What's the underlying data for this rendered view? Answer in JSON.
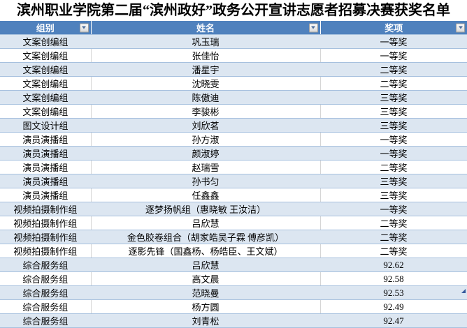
{
  "title": "滨州职业学院第二届“滨州政好”政务公开宣讲志愿者招募决赛获奖名单",
  "colors": {
    "header_bg": "#4F81BD",
    "header_text": "#FFFFFF",
    "band_row_bg": "#DCE6F1",
    "row_border": "#A6C0DE",
    "gridline": "#D6D6D6",
    "title_text": "#000000",
    "resize_handle": "#34579B"
  },
  "header": {
    "columns": [
      {
        "label": "组别",
        "filter_icon": "filter-dropdown-arrow-icon"
      },
      {
        "label": "姓名",
        "filter_icon": "filter-dropdown-arrow-icon"
      },
      {
        "label": "奖项",
        "filter_icon": "filter-dropdown-arrow-icon"
      }
    ]
  },
  "rows": [
    [
      "文案创编组",
      "巩玉瑞",
      "一等奖"
    ],
    [
      "文案创编组",
      "张佳怡",
      "一等奖"
    ],
    [
      "文案创编组",
      "潘星宇",
      "二等奖"
    ],
    [
      "文案创编组",
      "沈晓雯",
      "二等奖"
    ],
    [
      "文案创编组",
      "陈傲迪",
      "三等奖"
    ],
    [
      "文案创编组",
      "李骏彬",
      "三等奖"
    ],
    [
      "图文设计组",
      "刘欣茗",
      "三等奖"
    ],
    [
      "演员演播组",
      "孙方淑",
      "一等奖"
    ],
    [
      "演员演播组",
      "颜淑婷",
      "一等奖"
    ],
    [
      "演员演播组",
      "赵瑞雪",
      "二等奖"
    ],
    [
      "演员演播组",
      "孙书匀",
      "三等奖"
    ],
    [
      "演员演播组",
      "任鑫鑫",
      "三等奖"
    ],
    [
      "视频拍摄制作组",
      "逐梦扬帆组（惠晓敏 王汝洁）",
      "一等奖"
    ],
    [
      "视频拍摄制作组",
      "吕欣慧",
      "二等奖"
    ],
    [
      "视频拍摄制作组",
      "金色胶卷组合（胡家皓吴子霖 傅彦凯）",
      "二等奖"
    ],
    [
      "视频拍摄制作组",
      "逐影先锋（国鑫杨、杨皓臣、王文斌）",
      "二等奖"
    ],
    [
      "综合服务组",
      "吕欣慧",
      "92.62"
    ],
    [
      "综合服务组",
      "高文晨",
      "92.58"
    ],
    [
      "综合服务组",
      "范晓曼",
      "92.53"
    ],
    [
      "综合服务组",
      "杨方圆",
      "92.49"
    ],
    [
      "综合服务组",
      "刘青松",
      "92.47"
    ]
  ]
}
